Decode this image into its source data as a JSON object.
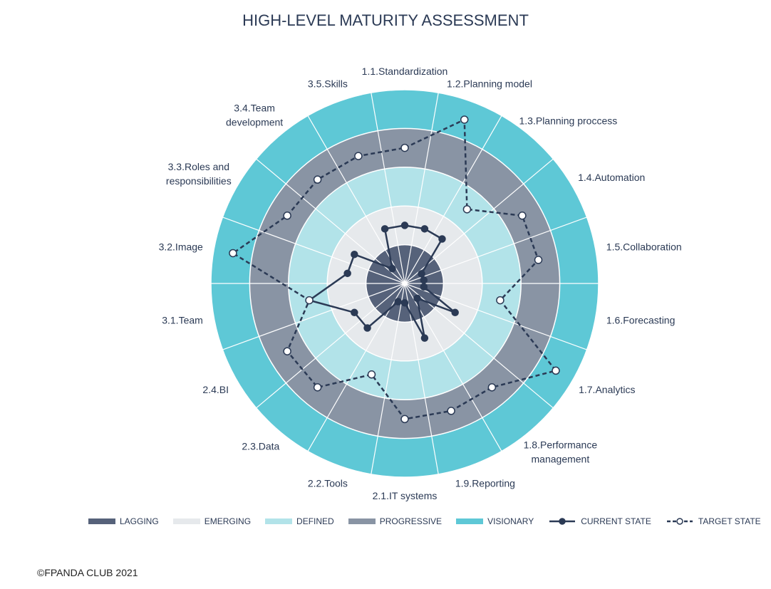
{
  "chart_data": {
    "type": "radar",
    "title": "HIGH-LEVEL MATURITY ASSESSMENT",
    "categories": [
      "1.1.Standardization",
      "1.2.Planning model",
      "1.3.Planning proccess",
      "1.4.Automation",
      "1.5.Collaboration",
      "1.6.Forecasting",
      "1.7.Analytics",
      "1.8.Performance\nmanagement",
      "1.9.Reporting",
      "2.1.IT systems",
      "2.2.Tools",
      "2.3.Data",
      "2.4.BI",
      "3.1.Team",
      "3.2.Image",
      "3.3.Roles and\nresponsibilities",
      "3.4.Team\ndevelopment",
      "3.5.Skills"
    ],
    "rlim": [
      0,
      5
    ],
    "bands": [
      {
        "name": "LAGGING",
        "color": "#56627a"
      },
      {
        "name": "EMERGING",
        "color": "#e6e9ec"
      },
      {
        "name": "DEFINED",
        "color": "#b2e3e9"
      },
      {
        "name": "PROGRESSIVE",
        "color": "#8994a4"
      },
      {
        "name": "VISIONARY",
        "color": "#5ec8d6"
      }
    ],
    "series": [
      {
        "name": "CURRENT STATE",
        "color": "#2b3a55",
        "dashed": false,
        "values": [
          1.5,
          1.5,
          1.5,
          0.5,
          0.5,
          0.5,
          1.5,
          0.5,
          1.5,
          0.5,
          0.5,
          1.5,
          1.5,
          2.5,
          1.5,
          1.5,
          0.5,
          1.5
        ]
      },
      {
        "name": "TARGET STATE",
        "color": "#2b3a55",
        "dashed": true,
        "values": [
          3.5,
          4.5,
          2.5,
          3.5,
          3.5,
          2.5,
          4.5,
          3.5,
          3.5,
          3.5,
          2.5,
          3.5,
          3.5,
          2.5,
          4.5,
          3.5,
          3.5,
          3.5
        ]
      }
    ],
    "footer": "©FPANDA CLUB 2021"
  }
}
